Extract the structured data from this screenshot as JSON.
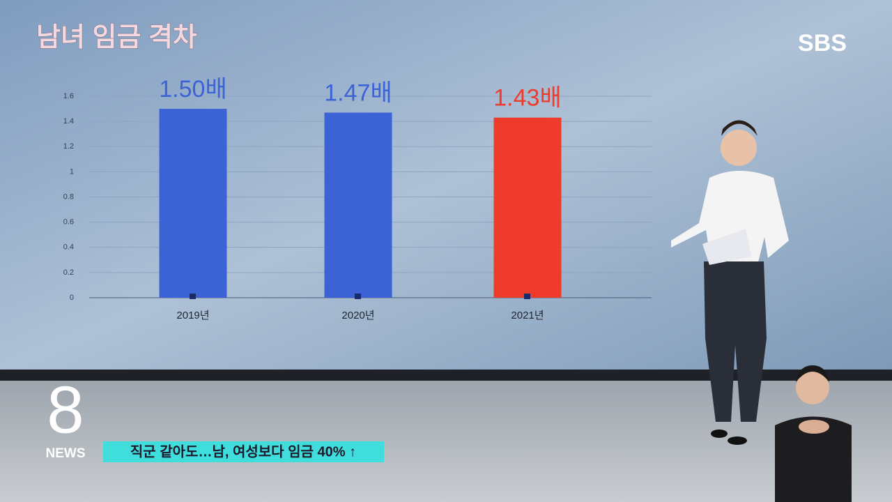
{
  "chart_data": {
    "type": "bar",
    "title": "남녀 임금 격차",
    "categories": [
      "2019년",
      "2020년",
      "2021년"
    ],
    "values": [
      1.5,
      1.47,
      1.43
    ],
    "value_labels": [
      "1.50배",
      "1.47배",
      "1.43배"
    ],
    "colors": [
      "#3b63d6",
      "#3b63d6",
      "#ee3b2b"
    ],
    "ylim": [
      0,
      1.6
    ],
    "yticks": [
      0,
      0.2,
      0.4,
      0.6,
      0.8,
      1,
      1.2,
      1.4,
      1.6
    ],
    "grid": true
  },
  "broadcaster": "SBS",
  "program": {
    "logo": "8",
    "label": "NEWS"
  },
  "caption": "직군 같아도…남, 여성보다 임금 40% ↑"
}
